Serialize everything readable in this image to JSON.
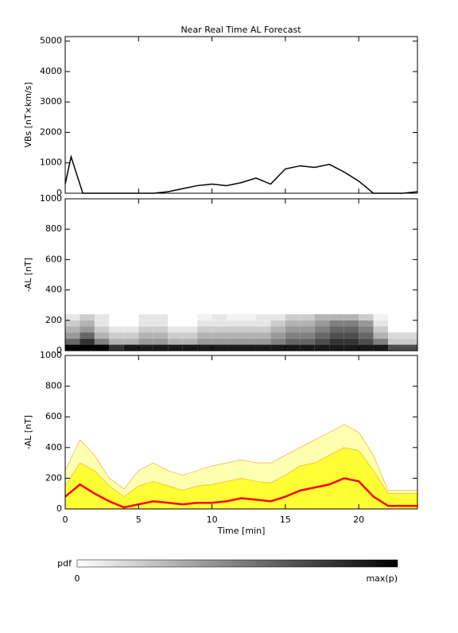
{
  "chart_data": [
    {
      "type": "line",
      "title": "Near Real Time AL Forecast",
      "ylabel": "VBs [nT×km/s]",
      "color": "#000000",
      "x": [
        0,
        0.4,
        0.8,
        1.2,
        2,
        3,
        4,
        5,
        6,
        7,
        8,
        9,
        10,
        11,
        12,
        13,
        14,
        15,
        16,
        17,
        18,
        19,
        20,
        21,
        22,
        23,
        24
      ],
      "values": [
        300,
        1200,
        600,
        0,
        0,
        0,
        0,
        0,
        0,
        50,
        150,
        250,
        300,
        250,
        350,
        500,
        300,
        800,
        900,
        850,
        950,
        700,
        400,
        0,
        0,
        0,
        50
      ],
      "xlim": [
        0,
        24
      ],
      "xticks": [
        0,
        5,
        10,
        15,
        20
      ],
      "ylim": [
        0,
        5150
      ],
      "yticks": [
        0,
        1000,
        2000,
        3000,
        4000,
        5000
      ]
    },
    {
      "type": "heatmap",
      "ylabel": "-AL [nT]",
      "x_bins": [
        0,
        1,
        2,
        3,
        4,
        5,
        6,
        7,
        8,
        9,
        10,
        11,
        12,
        13,
        14,
        15,
        16,
        17,
        18,
        19,
        20,
        21,
        22,
        23,
        24
      ],
      "y_bins": [
        0,
        40,
        80,
        120,
        160,
        200,
        240
      ],
      "rows": [
        [
          1,
          1,
          1,
          0.8,
          0.9,
          0.9,
          0.9,
          0.9,
          0.9,
          0.9,
          0.9,
          0.9,
          0.9,
          0.9,
          0.9,
          0.9,
          0.9,
          0.9,
          0.9,
          0.9,
          0.9,
          0.9,
          0.7,
          0.7
        ],
        [
          0.6,
          0.8,
          0.5,
          0.3,
          0.3,
          0.4,
          0.4,
          0.3,
          0.3,
          0.4,
          0.4,
          0.4,
          0.4,
          0.4,
          0.5,
          0.6,
          0.6,
          0.7,
          0.8,
          0.8,
          0.7,
          0.5,
          0.2,
          0.2
        ],
        [
          0.4,
          0.6,
          0.3,
          0.2,
          0.2,
          0.3,
          0.3,
          0.2,
          0.2,
          0.3,
          0.3,
          0.3,
          0.3,
          0.3,
          0.4,
          0.5,
          0.5,
          0.6,
          0.7,
          0.7,
          0.6,
          0.3,
          0.15,
          0.15
        ],
        [
          0.3,
          0.4,
          0.2,
          0.1,
          0.1,
          0.2,
          0.2,
          0.1,
          0.1,
          0.2,
          0.2,
          0.2,
          0.2,
          0.2,
          0.3,
          0.4,
          0.4,
          0.5,
          0.6,
          0.6,
          0.5,
          0.2,
          0,
          0
        ],
        [
          0.2,
          0.3,
          0.1,
          0,
          0,
          0.1,
          0.1,
          0,
          0,
          0.1,
          0.1,
          0.1,
          0.1,
          0.1,
          0.2,
          0.3,
          0.3,
          0.4,
          0.5,
          0.5,
          0.4,
          0.1,
          0,
          0
        ],
        [
          0.1,
          0.2,
          0.1,
          0,
          0,
          0.1,
          0.1,
          0,
          0,
          0.05,
          0.1,
          0.05,
          0.05,
          0.1,
          0.1,
          0.2,
          0.2,
          0.3,
          0.3,
          0.3,
          0.2,
          0.05,
          0,
          0
        ]
      ],
      "xlim": [
        0,
        24
      ],
      "xticks": [
        0,
        5,
        10,
        15,
        20
      ],
      "ylim": [
        0,
        1000
      ],
      "yticks": [
        0,
        200,
        400,
        600,
        800,
        1000
      ],
      "colorbar": {
        "label": "pdf",
        "min_label": "0",
        "max_label": "max(p)"
      }
    },
    {
      "type": "band",
      "ylabel": "-AL [nT]",
      "xlabel": "Time [min]",
      "x": [
        0,
        1,
        2,
        3,
        4,
        5,
        6,
        7,
        8,
        9,
        10,
        11,
        12,
        13,
        14,
        15,
        16,
        17,
        18,
        19,
        20,
        21,
        22,
        23,
        24
      ],
      "series": [
        {
          "kind": "area",
          "color": "#ffffb0",
          "values": [
            250,
            450,
            350,
            200,
            130,
            250,
            300,
            250,
            220,
            250,
            280,
            300,
            320,
            300,
            300,
            350,
            400,
            450,
            500,
            550,
            500,
            350,
            120,
            120,
            120
          ]
        },
        {
          "kind": "area",
          "color": "#ffff33",
          "values": [
            150,
            300,
            250,
            150,
            80,
            150,
            180,
            150,
            120,
            150,
            160,
            180,
            200,
            180,
            170,
            220,
            280,
            300,
            350,
            400,
            380,
            250,
            100,
            100,
            100
          ]
        },
        {
          "kind": "line",
          "color": "#ff0000",
          "values": [
            80,
            160,
            100,
            50,
            10,
            30,
            50,
            40,
            30,
            40,
            40,
            50,
            70,
            60,
            50,
            80,
            120,
            140,
            160,
            200,
            180,
            80,
            20,
            20,
            20
          ]
        }
      ],
      "xlim": [
        0,
        24
      ],
      "xticks": [
        0,
        5,
        10,
        15,
        20
      ],
      "ylim": [
        0,
        1000
      ],
      "yticks": [
        0,
        200,
        400,
        600,
        800,
        1000
      ]
    }
  ]
}
